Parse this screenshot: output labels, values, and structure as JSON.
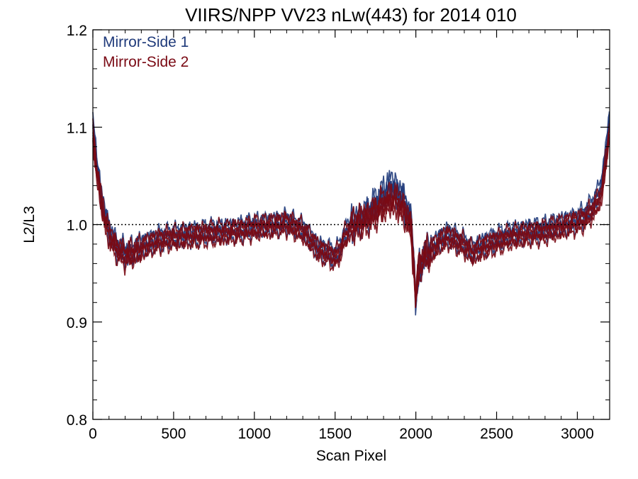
{
  "chart_data": {
    "type": "line",
    "title": "VIIRS/NPP VV23 nLw(443) for 2014 010",
    "xlabel": "Scan Pixel",
    "ylabel": "L2/L3",
    "xlim": [
      0,
      3200
    ],
    "ylim": [
      0.8,
      1.2
    ],
    "x_ticks": [
      0,
      500,
      1000,
      1500,
      2000,
      2500,
      3000
    ],
    "x_tick_labels": [
      "0",
      "500",
      "1000",
      "1500",
      "2000",
      "2500",
      "3000"
    ],
    "y_ticks": [
      0.8,
      0.9,
      1.0,
      1.1,
      1.2
    ],
    "y_tick_labels": [
      "0.8",
      "0.9",
      "1.0",
      "1.1",
      "1.2"
    ],
    "reference_line": {
      "y": 1.0,
      "style": "dotted",
      "color": "#000000"
    },
    "grid": false,
    "legend_placement": "top-left",
    "legend": [
      {
        "label": "Mirror-Side 1",
        "color": "#1f3a7a"
      },
      {
        "label": "Mirror-Side 2",
        "color": "#7a0a14"
      }
    ],
    "series": [
      {
        "name": "Mirror-Side 1",
        "color": "#1f3a7a",
        "x": [
          0,
          20,
          50,
          80,
          120,
          160,
          200,
          250,
          300,
          400,
          500,
          600,
          700,
          800,
          900,
          1000,
          1100,
          1200,
          1300,
          1350,
          1400,
          1450,
          1500,
          1530,
          1560,
          1600,
          1650,
          1700,
          1750,
          1800,
          1850,
          1900,
          1940,
          1970,
          1990,
          2000,
          2010,
          2030,
          2060,
          2100,
          2150,
          2200,
          2300,
          2350,
          2400,
          2500,
          2600,
          2700,
          2800,
          2900,
          3000,
          3050,
          3100,
          3150,
          3180,
          3200
        ],
        "y": [
          1.1,
          1.07,
          1.03,
          1.005,
          0.985,
          0.975,
          0.97,
          0.972,
          0.978,
          0.985,
          0.988,
          0.99,
          0.992,
          0.993,
          0.995,
          0.998,
          1.0,
          1.003,
          0.995,
          0.985,
          0.975,
          0.972,
          0.968,
          0.975,
          0.99,
          1.0,
          1.005,
          1.01,
          1.02,
          1.03,
          1.04,
          1.03,
          1.02,
          1.0,
          0.96,
          0.91,
          0.94,
          0.96,
          0.97,
          0.975,
          0.985,
          0.99,
          0.98,
          0.972,
          0.978,
          0.985,
          0.99,
          0.993,
          0.995,
          1.0,
          1.005,
          1.01,
          1.02,
          1.04,
          1.08,
          1.11
        ]
      },
      {
        "name": "Mirror-Side 2",
        "color": "#7a0a14",
        "x": [
          0,
          20,
          50,
          80,
          120,
          160,
          200,
          250,
          300,
          400,
          500,
          600,
          700,
          800,
          900,
          1000,
          1100,
          1200,
          1300,
          1350,
          1400,
          1450,
          1500,
          1530,
          1560,
          1600,
          1650,
          1700,
          1750,
          1800,
          1850,
          1900,
          1940,
          1970,
          1990,
          2000,
          2010,
          2030,
          2060,
          2100,
          2150,
          2200,
          2300,
          2350,
          2400,
          2500,
          2600,
          2700,
          2800,
          2900,
          3000,
          3050,
          3100,
          3150,
          3180,
          3200
        ],
        "y": [
          1.09,
          1.06,
          1.025,
          1.0,
          0.982,
          0.972,
          0.968,
          0.97,
          0.975,
          0.983,
          0.986,
          0.988,
          0.99,
          0.991,
          0.993,
          0.996,
          0.998,
          1.001,
          0.993,
          0.983,
          0.973,
          0.97,
          0.965,
          0.972,
          0.987,
          0.997,
          1.002,
          1.006,
          1.012,
          1.02,
          1.025,
          1.02,
          1.01,
          0.995,
          0.955,
          0.915,
          0.945,
          0.962,
          0.968,
          0.972,
          0.982,
          0.987,
          0.978,
          0.97,
          0.975,
          0.982,
          0.987,
          0.99,
          0.992,
          0.997,
          1.002,
          1.006,
          1.015,
          1.03,
          1.07,
          1.095
        ]
      }
    ]
  }
}
